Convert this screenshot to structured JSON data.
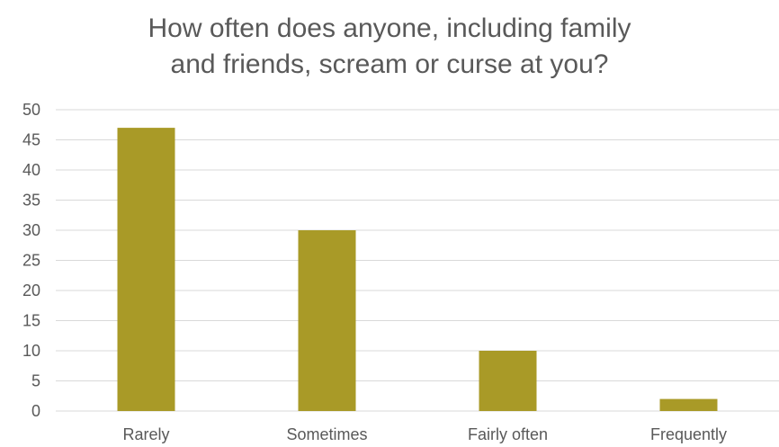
{
  "chart_data": {
    "type": "bar",
    "title": "How often does anyone, including family\nand friends, scream or curse at you?",
    "xlabel": "",
    "ylabel": "",
    "categories": [
      "Rarely",
      "Sometimes",
      "Fairly often",
      "Frequently"
    ],
    "values": [
      47,
      30,
      10,
      2
    ],
    "ylim": [
      0,
      50
    ],
    "yticks": [
      0,
      5,
      10,
      15,
      20,
      25,
      30,
      35,
      40,
      45,
      50
    ],
    "grid": true,
    "legend": "none",
    "bar_color": "#A99A27",
    "gridline_color": "#D9D9D9",
    "text_color": "#595959"
  }
}
